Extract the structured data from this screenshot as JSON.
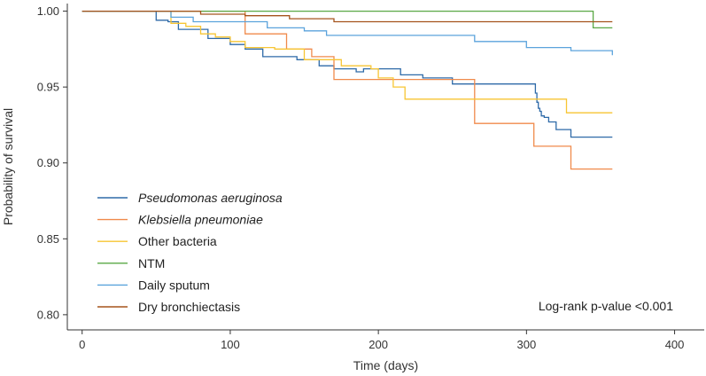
{
  "chart_data": {
    "type": "line",
    "subtype": "kaplan-meier step",
    "xlabel": "Time (days)",
    "ylabel": "Probability of survival",
    "xlim": [
      -10,
      420
    ],
    "ylim": [
      0.79,
      1.005
    ],
    "xticks": [
      0,
      100,
      200,
      300,
      400
    ],
    "xtick_labels": [
      "0",
      "100",
      "200",
      "300",
      "400"
    ],
    "yticks": [
      0.8,
      0.85,
      0.9,
      0.95,
      1.0
    ],
    "ytick_labels": [
      "0.80",
      "0.85",
      "0.90",
      "0.95",
      "1.00"
    ],
    "grid": false,
    "legend_position": "lower-left",
    "annotation": "Log-rank p-value <0.001",
    "series": [
      {
        "name": "Pseudomonas aeruginosa",
        "italic": true,
        "color": "#2e6aa8",
        "x": [
          0,
          50,
          58,
          65,
          85,
          100,
          110,
          122,
          145,
          160,
          170,
          185,
          190,
          215,
          230,
          250,
          305,
          306,
          307,
          308,
          309,
          310,
          312,
          315,
          320,
          330,
          358
        ],
        "y": [
          1.0,
          0.994,
          0.993,
          0.988,
          0.982,
          0.978,
          0.975,
          0.97,
          0.968,
          0.964,
          0.962,
          0.96,
          0.962,
          0.958,
          0.956,
          0.952,
          0.952,
          0.946,
          0.94,
          0.936,
          0.934,
          0.931,
          0.93,
          0.927,
          0.922,
          0.917,
          0.917
        ]
      },
      {
        "name": "Klebsiella pneumoniae",
        "italic": true,
        "color": "#f08a4b",
        "x": [
          0,
          110,
          138,
          155,
          170,
          198,
          252,
          265,
          305,
          325,
          330,
          358
        ],
        "y": [
          1.0,
          0.985,
          0.975,
          0.97,
          0.955,
          0.955,
          0.955,
          0.926,
          0.911,
          0.911,
          0.896,
          0.896
        ]
      },
      {
        "name": "Other bacteria",
        "italic": false,
        "color": "#f7c533",
        "x": [
          0,
          60,
          70,
          80,
          90,
          100,
          110,
          130,
          150,
          175,
          195,
          200,
          210,
          218,
          270,
          300,
          310,
          322,
          327,
          358
        ],
        "y": [
          1.0,
          0.992,
          0.99,
          0.985,
          0.983,
          0.98,
          0.976,
          0.975,
          0.968,
          0.964,
          0.962,
          0.956,
          0.95,
          0.942,
          0.942,
          0.942,
          0.942,
          0.942,
          0.933,
          0.933
        ]
      },
      {
        "name": "NTM",
        "italic": false,
        "color": "#5aa845",
        "x": [
          0,
          340,
          345,
          358
        ],
        "y": [
          1.0,
          1.0,
          0.989,
          0.989
        ]
      },
      {
        "name": "Daily sputum",
        "italic": false,
        "color": "#5ba3dc",
        "x": [
          0,
          60,
          75,
          110,
          125,
          150,
          165,
          175,
          265,
          300,
          330,
          355,
          358
        ],
        "y": [
          1.0,
          0.996,
          0.993,
          0.993,
          0.989,
          0.987,
          0.984,
          0.984,
          0.98,
          0.976,
          0.974,
          0.974,
          0.971
        ]
      },
      {
        "name": "Dry bronchiectasis",
        "italic": false,
        "color": "#a5531c",
        "x": [
          0,
          80,
          110,
          140,
          170,
          345,
          358
        ],
        "y": [
          1.0,
          0.998,
          0.997,
          0.995,
          0.993,
          0.993,
          0.993
        ]
      }
    ]
  }
}
